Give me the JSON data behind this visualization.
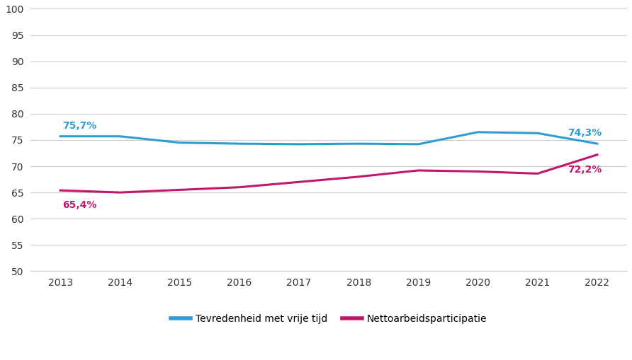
{
  "years": [
    2013,
    2014,
    2015,
    2016,
    2017,
    2018,
    2019,
    2020,
    2021,
    2022
  ],
  "tevredenheid": [
    75.7,
    75.7,
    74.5,
    74.3,
    74.2,
    74.3,
    74.2,
    76.5,
    76.3,
    74.3
  ],
  "nettoarbeids": [
    65.4,
    65.0,
    65.5,
    66.0,
    67.0,
    68.0,
    69.2,
    69.0,
    68.6,
    72.2
  ],
  "tevredenheid_color": "#2E9DD4",
  "nettoarbeids_color": "#C0176C",
  "tevredenheid_label": "Tevredenheid met vrije tijd",
  "nettoarbeids_label": "Nettoarbeidsparticipatie",
  "ylim": [
    50,
    100
  ],
  "yticks": [
    50,
    55,
    60,
    65,
    70,
    75,
    80,
    85,
    90,
    95,
    100
  ],
  "background_color": "#ffffff",
  "grid_color": "#cccccc",
  "annotation_2013_tv": "75,7%",
  "annotation_2022_tv": "74,3%",
  "annotation_2013_net": "65,4%",
  "annotation_2022_net": "72,2%",
  "linewidth": 2.2
}
